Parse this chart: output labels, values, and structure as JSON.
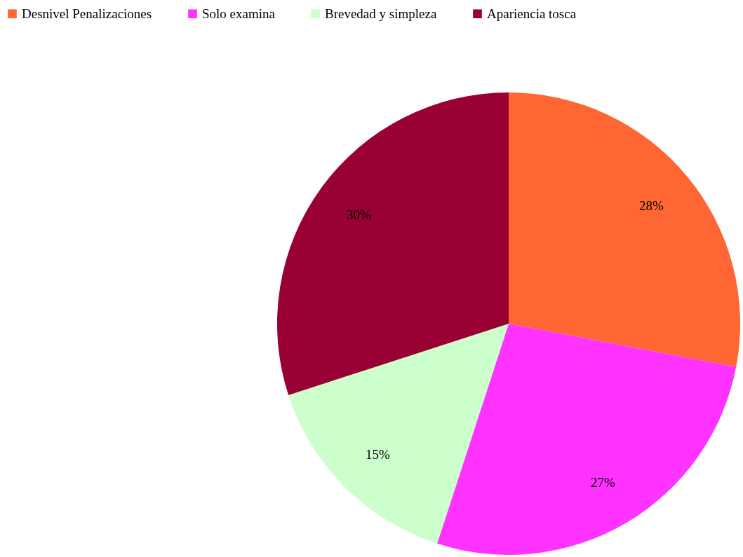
{
  "chart_data": {
    "type": "pie",
    "categories": [
      "Desnivel Penalizaciones",
      "Solo examina",
      "Brevedad y simpleza",
      "Apariencia tosca"
    ],
    "values": [
      28,
      27,
      15,
      30
    ],
    "colors": [
      "#ff6633",
      "#ff33ff",
      "#ccffcc",
      "#990033"
    ],
    "value_labels": [
      "28%",
      "27%",
      "15%",
      "30%"
    ],
    "legend": "top left"
  }
}
